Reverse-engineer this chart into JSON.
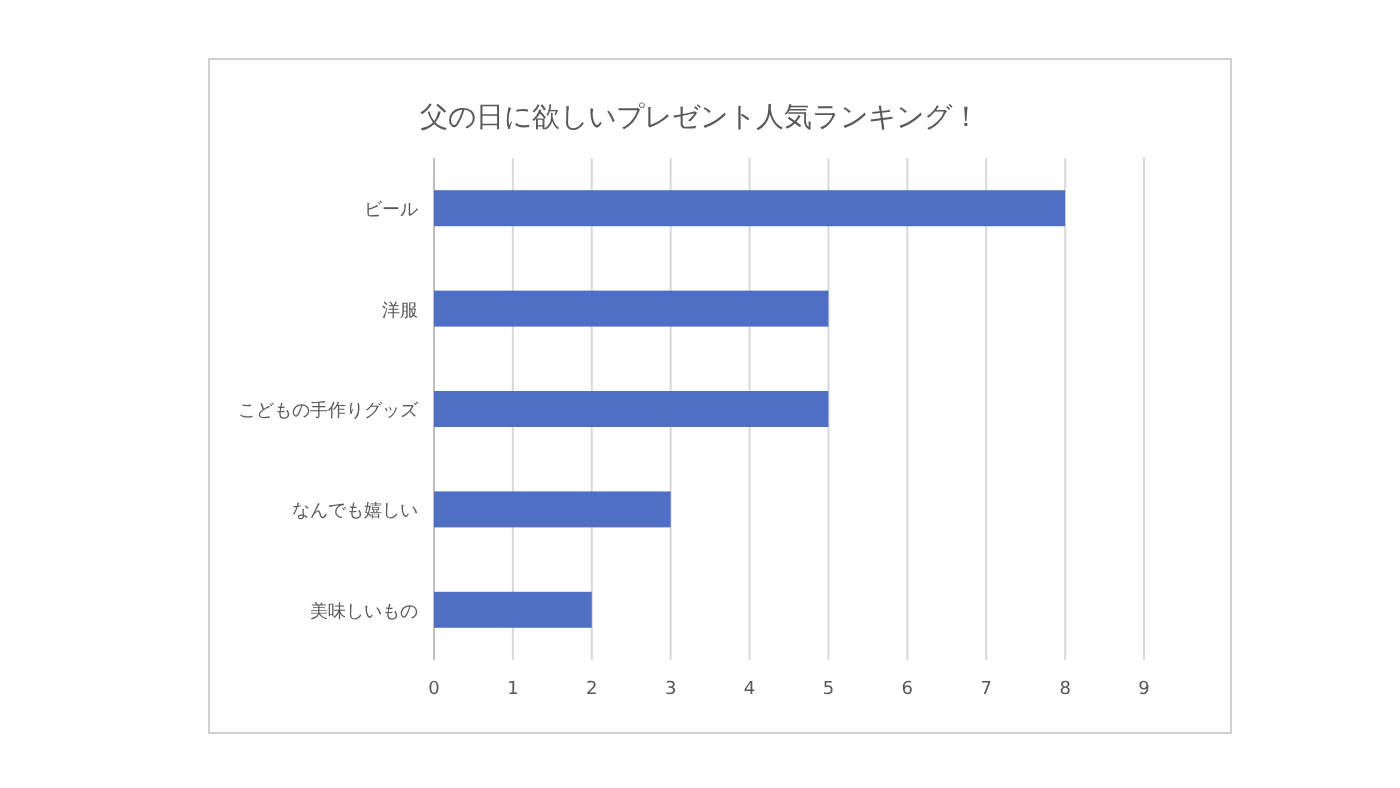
{
  "chart_data": {
    "type": "bar",
    "orientation": "horizontal",
    "title": "父の日に欲しいプレゼント人気ランキング！",
    "categories": [
      "ビール",
      "洋服",
      "こどもの手作りグッズ",
      "なんでも嬉しい",
      "美味しいもの"
    ],
    "values": [
      8,
      5,
      5,
      3,
      2
    ],
    "color": "#4e6fc4",
    "xlim": [
      0,
      9
    ],
    "xticks": [
      0,
      1,
      2,
      3,
      4,
      5,
      6,
      7,
      8,
      9
    ],
    "grid": "x"
  }
}
